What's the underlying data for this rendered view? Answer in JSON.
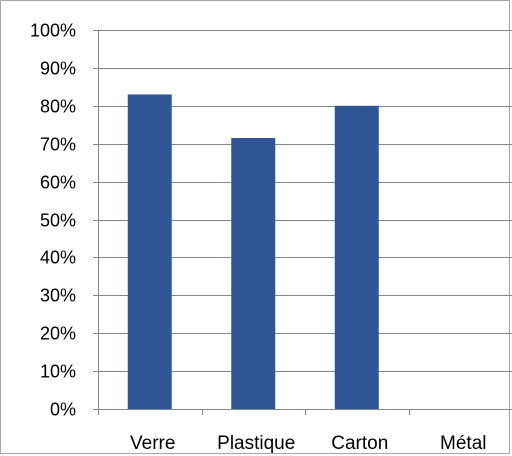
{
  "chart_data": {
    "type": "bar",
    "categories": [
      "Verre",
      "Plastique",
      "Carton",
      "Métal"
    ],
    "values": [
      83,
      71.5,
      80,
      0
    ],
    "title": "",
    "xlabel": "",
    "ylabel": "",
    "ylim": [
      0,
      100
    ],
    "y_ticks": [
      "0%",
      "10%",
      "20%",
      "30%",
      "40%",
      "50%",
      "60%",
      "70%",
      "80%",
      "90%",
      "100%"
    ],
    "y_tick_values": [
      0,
      10,
      20,
      30,
      40,
      50,
      60,
      70,
      80,
      90,
      100
    ],
    "grid": true,
    "legend": "none",
    "colors": {
      "bar": "#2f5597",
      "grid": "#868686",
      "axis": "#868686",
      "frame": "#a6a6a6"
    }
  }
}
